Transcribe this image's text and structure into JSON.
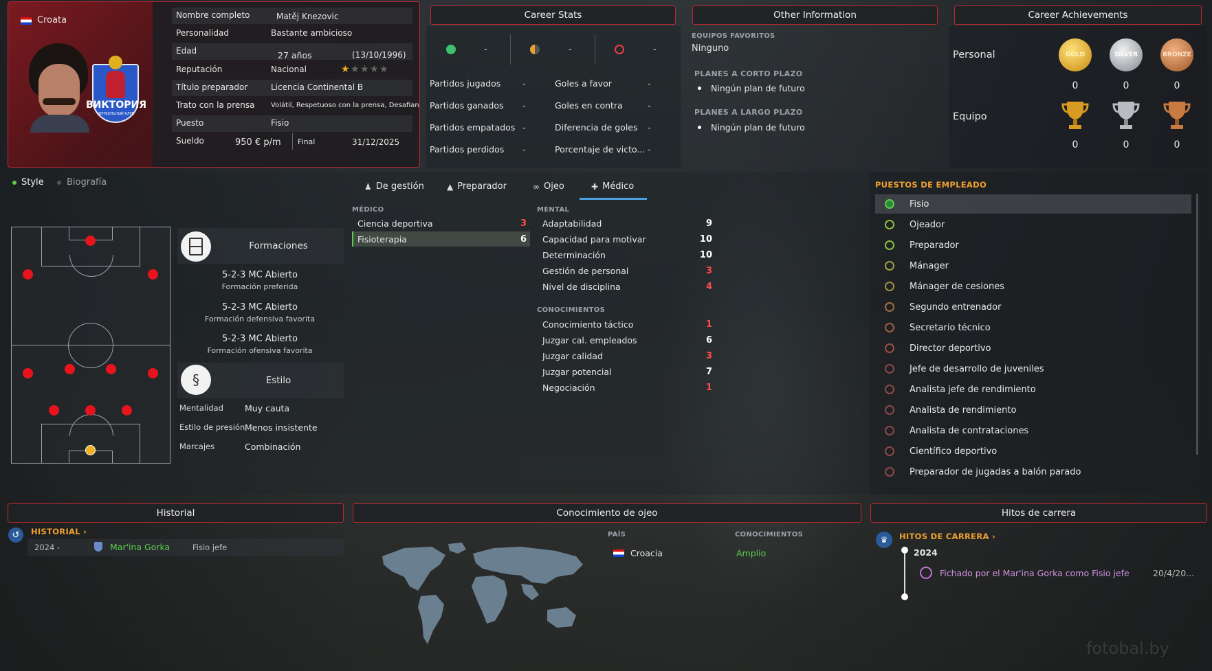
{
  "profile": {
    "nationality": "Croata",
    "club_logo_text": "ВИКТОРИЯ",
    "club_logo_sub": "ФУТБОЛЬНЫЙ КЛУБ",
    "fields": [
      {
        "label": "Nombre completo",
        "value": "Matěj Knezovic"
      },
      {
        "label": "Personalidad",
        "value": "Bastante ambicioso"
      },
      {
        "label": "Edad",
        "value": "27 años",
        "extra": "(13/10/1996)"
      },
      {
        "label": "Reputación",
        "value": "Nacional",
        "stars": 1,
        "stars_max": 5
      },
      {
        "label": "Título preparador",
        "value": "Licencia Continental B"
      },
      {
        "label": "Trato con la prensa",
        "value": "Volátil, Respetuoso con la prensa, Desafiante"
      },
      {
        "label": "Puesto",
        "value": "Fisio"
      },
      {
        "label": "Sueldo",
        "value": "950 € p/m",
        "extra_label": "Final",
        "extra": "31/12/2025"
      }
    ]
  },
  "career_stats": {
    "title": "Career Stats",
    "summary": [
      "-",
      "-",
      "-"
    ],
    "rows_left": [
      {
        "label": "Partidos jugados",
        "value": "-"
      },
      {
        "label": "Partidos ganados",
        "value": "-"
      },
      {
        "label": "Partidos empatados",
        "value": "-"
      },
      {
        "label": "Partidos perdidos",
        "value": "-"
      }
    ],
    "rows_right": [
      {
        "label": "Goles a favor",
        "value": "-"
      },
      {
        "label": "Goles en contra",
        "value": "-"
      },
      {
        "label": "Diferencia de goles",
        "value": "-"
      },
      {
        "label": "Porcentaje de victo...",
        "value": "-"
      }
    ]
  },
  "other_info": {
    "title": "Other Information",
    "fav_label": "EQUIPOS FAVORITOS",
    "fav_value": "Ninguno",
    "short_label": "PLANES A CORTO PLAZO",
    "short_value": "Ningún plan de futuro",
    "long_label": "PLANES A LARGO PLAZO",
    "long_value": "Ningún plan de futuro"
  },
  "achievements": {
    "title": "Career Achievements",
    "personal_label": "Personal",
    "team_label": "Equipo",
    "medals": [
      "GOLD",
      "SILVER",
      "BRONZE"
    ],
    "personal_counts": [
      "0",
      "0",
      "0"
    ],
    "team_counts": [
      "0",
      "0",
      "0"
    ]
  },
  "left_tabs": {
    "style": "Style",
    "bio": "Biografía"
  },
  "formations": {
    "title": "Formaciones",
    "items": [
      {
        "name": "5-2-3 MC Abierto",
        "desc": "Formación preferida"
      },
      {
        "name": "5-2-3 MC Abierto",
        "desc": "Formación defensiva favorita"
      },
      {
        "name": "5-2-3 MC Abierto",
        "desc": "Formación ofensiva favorita"
      }
    ]
  },
  "style": {
    "title": "Estilo",
    "rows": [
      {
        "label": "Mentalidad",
        "value": "Muy cauta"
      },
      {
        "label": "Estilo de presión",
        "value": "Menos insistente"
      },
      {
        "label": "Marcajes",
        "value": "Combinación"
      }
    ]
  },
  "attr_tabs": [
    "De gestión",
    "Preparador",
    "Ojeo",
    "Médico"
  ],
  "medical": {
    "label": "MÉDICO",
    "rows": [
      {
        "label": "Ciencia deportiva",
        "value": "3",
        "color": "red"
      },
      {
        "label": "Fisioterapia",
        "value": "6",
        "color": "white"
      }
    ]
  },
  "mental": {
    "label": "MENTAL",
    "rows": [
      {
        "label": "Adaptabilidad",
        "value": "9",
        "color": "white"
      },
      {
        "label": "Capacidad para motivar",
        "value": "10",
        "color": "white"
      },
      {
        "label": "Determinación",
        "value": "10",
        "color": "white"
      },
      {
        "label": "Gestión de personal",
        "value": "3",
        "color": "red"
      },
      {
        "label": "Nivel de disciplina",
        "value": "4",
        "color": "red"
      }
    ]
  },
  "knowledge": {
    "label": "CONOCIMIENTOS",
    "rows": [
      {
        "label": "Conocimiento táctico",
        "value": "1",
        "color": "red"
      },
      {
        "label": "Juzgar cal. empleados",
        "value": "6",
        "color": "white"
      },
      {
        "label": "Juzgar calidad",
        "value": "3",
        "color": "red"
      },
      {
        "label": "Juzgar potencial",
        "value": "7",
        "color": "white"
      },
      {
        "label": "Negociación",
        "value": "1",
        "color": "red"
      }
    ]
  },
  "roles": {
    "title": "PUESTOS DE EMPLEADO",
    "items": [
      "Fisio",
      "Ojeador",
      "Preparador",
      "Mánager",
      "Mánager de cesiones",
      "Segundo entrenador",
      "Secretario técnico",
      "Director deportivo",
      "Jefe de desarrollo de juveniles",
      "Analista jefe de rendimiento",
      "Analista de rendimiento",
      "Analista de contrataciones",
      "Científico deportivo",
      "Preparador de jugadas a balón parado"
    ]
  },
  "history": {
    "title": "Historial",
    "link": "HISTORIAL",
    "rows": [
      {
        "year": "2024 -",
        "club": "Mar'ina Gorka",
        "role": "Fisio jefe"
      }
    ]
  },
  "scout_knowledge": {
    "title": "Conocimiento de ojeo",
    "country_label": "PAÍS",
    "knowledge_label": "CONOCIMIENTOS",
    "country": "Croacia",
    "level": "Amplio"
  },
  "milestones": {
    "title": "Hitos de carrera",
    "link": "HITOS DE CARRERA",
    "year": "2024",
    "event": "Fichado por el Mar'ina Gorka como Fisio jefe",
    "date": "20/4/20..."
  },
  "watermark": "fotobal.by",
  "colors": {
    "accent": "#c0282f",
    "orange": "#f0a030",
    "red": "#ff4a4a",
    "green": "#5ccb4c"
  }
}
